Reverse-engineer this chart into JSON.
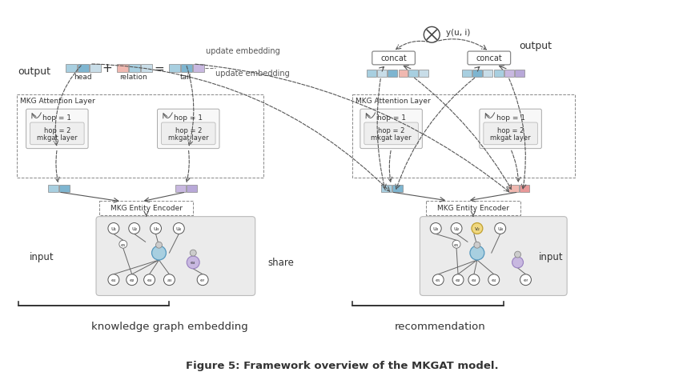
{
  "title": "Figure 5: Framework overview of the MKGAT model.",
  "left_label": "knowledge graph embedding",
  "right_label": "recommendation",
  "share_label": "share",
  "input_label_left": "input",
  "input_label_right": "input",
  "output_label_left": "output",
  "output_label_right": "output",
  "update_embedding_top": "update embedding",
  "update_embedding_right": "update embedding",
  "bg_color": "#ffffff",
  "blue1": "#a8cfe0",
  "blue2": "#7eb5d0",
  "blue3": "#c8dde8",
  "pink1": "#f0b8b0",
  "pink2": "#e89898",
  "purple1": "#c8b8e0",
  "purple2": "#b8a8d8",
  "yellow1": "#f0d880",
  "encoder_fc": "#d8d8d8",
  "graph_bg": "#ebebeb",
  "mkg_layer_fc": "#f8f8f8",
  "hop2_fc": "#eeeeee",
  "dashed_color": "#555555",
  "text_color": "#333333",
  "concat_fc": "#ffffff"
}
